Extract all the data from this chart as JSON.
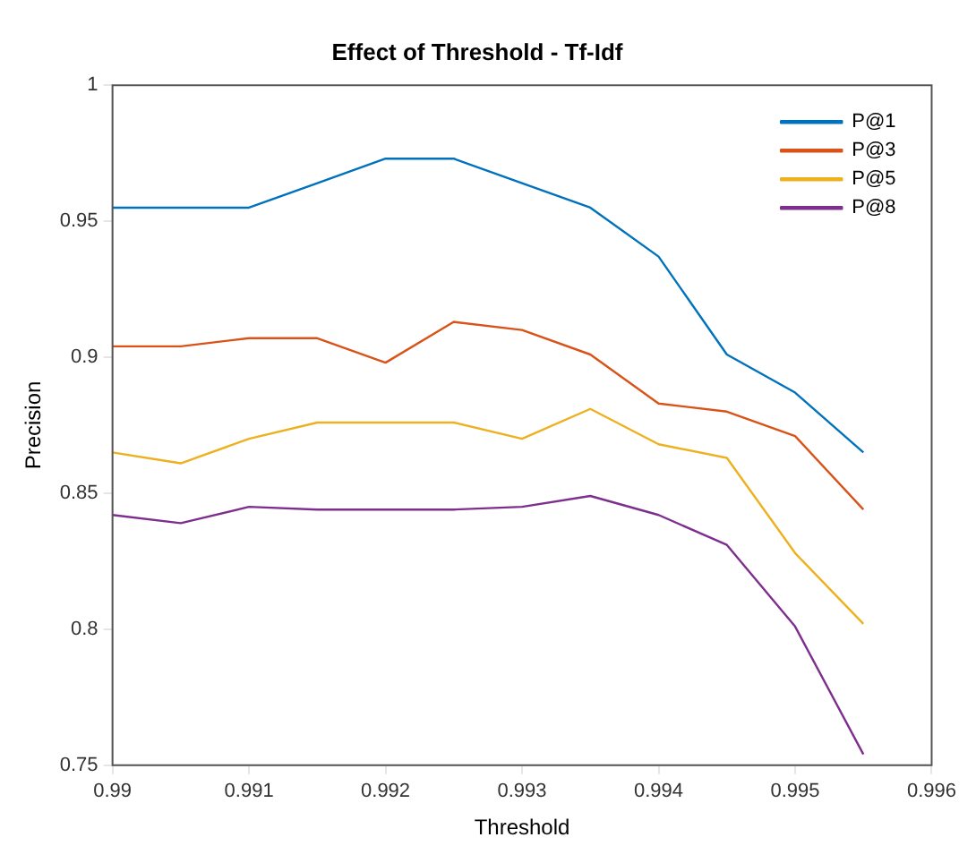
{
  "chart_data": {
    "type": "line",
    "title": "Effect of Threshold - Tf-Idf",
    "xlabel": "Threshold",
    "ylabel": "Precision",
    "x": [
      0.99,
      0.9905,
      0.991,
      0.9915,
      0.992,
      0.9925,
      0.993,
      0.9935,
      0.994,
      0.9945,
      0.995,
      0.9955
    ],
    "series": [
      {
        "name": "P@1",
        "color": "#0072bd",
        "values": [
          0.955,
          0.955,
          0.955,
          0.964,
          0.973,
          0.973,
          0.964,
          0.955,
          0.937,
          0.901,
          0.887,
          0.865
        ]
      },
      {
        "name": "P@3",
        "color": "#d95319",
        "values": [
          0.904,
          0.904,
          0.907,
          0.907,
          0.898,
          0.913,
          0.91,
          0.901,
          0.883,
          0.88,
          0.871,
          0.844
        ]
      },
      {
        "name": "P@5",
        "color": "#edb120",
        "values": [
          0.865,
          0.861,
          0.87,
          0.876,
          0.876,
          0.876,
          0.87,
          0.881,
          0.868,
          0.863,
          0.828,
          0.802
        ]
      },
      {
        "name": "P@8",
        "color": "#7e2f8e",
        "values": [
          0.842,
          0.839,
          0.845,
          0.844,
          0.844,
          0.844,
          0.845,
          0.849,
          0.842,
          0.831,
          0.801,
          0.754
        ]
      }
    ],
    "xlim": [
      0.99,
      0.996
    ],
    "xticks": [
      0.99,
      0.991,
      0.992,
      0.993,
      0.994,
      0.995,
      0.996
    ],
    "ylim": [
      0.75,
      1
    ],
    "yticks": [
      0.75,
      0.8,
      0.85,
      0.9,
      0.95,
      1
    ],
    "grid": false,
    "legend": "top right",
    "marker": "none",
    "line_style": "solid"
  }
}
